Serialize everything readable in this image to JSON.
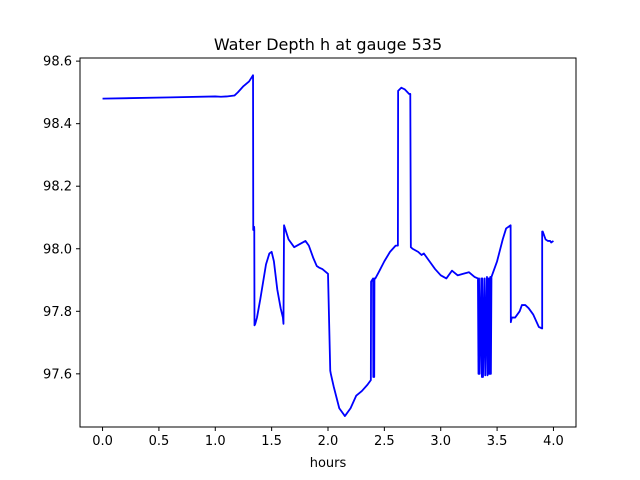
{
  "chart_data": {
    "type": "line",
    "title": "Water Depth h at gauge 535",
    "xlabel": "hours",
    "ylabel": "",
    "xlim": [
      -0.2,
      4.2
    ],
    "ylim": [
      97.43,
      98.61
    ],
    "xticks": [
      0.0,
      0.5,
      1.0,
      1.5,
      2.0,
      2.5,
      3.0,
      3.5,
      4.0
    ],
    "xtick_labels": [
      "0.0",
      "0.5",
      "1.0",
      "1.5",
      "2.0",
      "2.5",
      "3.0",
      "3.5",
      "4.0"
    ],
    "yticks": [
      97.6,
      97.8,
      98.0,
      98.2,
      98.4,
      98.6
    ],
    "ytick_labels": [
      "97.6",
      "97.8",
      "98.0",
      "98.2",
      "98.4",
      "98.6"
    ],
    "grid": false,
    "series": [
      {
        "color": "#0000ff",
        "x": [
          0.0,
          0.6,
          1.0,
          1.05,
          1.1,
          1.17,
          1.2,
          1.25,
          1.3,
          1.335,
          1.337,
          1.345,
          1.346,
          1.348,
          1.355,
          1.37,
          1.4,
          1.45,
          1.48,
          1.5,
          1.52,
          1.55,
          1.58,
          1.6,
          1.605,
          1.61,
          1.65,
          1.7,
          1.75,
          1.8,
          1.83,
          1.87,
          1.9,
          1.92,
          1.95,
          2.0,
          2.02,
          2.025,
          2.05,
          2.1,
          2.15,
          2.2,
          2.25,
          2.3,
          2.35,
          2.38,
          2.382,
          2.4,
          2.402,
          2.41,
          2.412,
          2.42,
          2.45,
          2.5,
          2.55,
          2.6,
          2.62,
          2.622,
          2.65,
          2.68,
          2.72,
          2.73,
          2.735,
          2.75,
          2.8,
          2.83,
          2.85,
          2.9,
          2.95,
          3.0,
          3.05,
          3.1,
          3.15,
          3.2,
          3.25,
          3.3,
          3.33,
          3.335,
          3.34,
          3.345,
          3.36,
          3.365,
          3.37,
          3.375,
          3.39,
          3.395,
          3.41,
          3.415,
          3.42,
          3.425,
          3.43,
          3.435,
          3.44,
          3.445,
          3.45,
          3.46,
          3.5,
          3.55,
          3.58,
          3.62,
          3.622,
          3.63,
          3.66,
          3.7,
          3.72,
          3.75,
          3.78,
          3.82,
          3.87,
          3.9,
          3.9,
          3.905,
          3.93,
          3.95,
          3.97,
          3.98,
          4.0
        ],
        "y": [
          98.48,
          98.484,
          98.487,
          98.486,
          98.487,
          98.49,
          98.5,
          98.52,
          98.535,
          98.555,
          98.06,
          98.07,
          98.06,
          97.755,
          97.76,
          97.78,
          97.84,
          97.95,
          97.985,
          97.99,
          97.96,
          97.87,
          97.81,
          97.78,
          97.76,
          98.075,
          98.03,
          98.005,
          98.015,
          98.025,
          98.01,
          97.97,
          97.945,
          97.94,
          97.935,
          97.92,
          97.61,
          97.6,
          97.56,
          97.49,
          97.465,
          97.49,
          97.53,
          97.545,
          97.565,
          97.58,
          97.895,
          97.905,
          97.59,
          97.59,
          97.905,
          97.905,
          97.925,
          97.96,
          97.99,
          98.01,
          98.01,
          98.505,
          98.515,
          98.51,
          98.495,
          98.495,
          98.005,
          98.0,
          97.99,
          97.98,
          97.985,
          97.96,
          97.935,
          97.915,
          97.905,
          97.93,
          97.915,
          97.92,
          97.925,
          97.91,
          97.905,
          97.6,
          97.905,
          97.6,
          97.905,
          97.59,
          97.905,
          97.59,
          97.905,
          97.595,
          97.91,
          97.595,
          97.905,
          97.6,
          97.905,
          97.6,
          97.91,
          97.6,
          97.91,
          97.92,
          97.96,
          98.03,
          98.065,
          98.075,
          97.765,
          97.78,
          97.78,
          97.8,
          97.82,
          97.82,
          97.81,
          97.79,
          97.75,
          97.745,
          98.055,
          98.055,
          98.03,
          98.025,
          98.025,
          98.02,
          98.025
        ]
      }
    ]
  }
}
